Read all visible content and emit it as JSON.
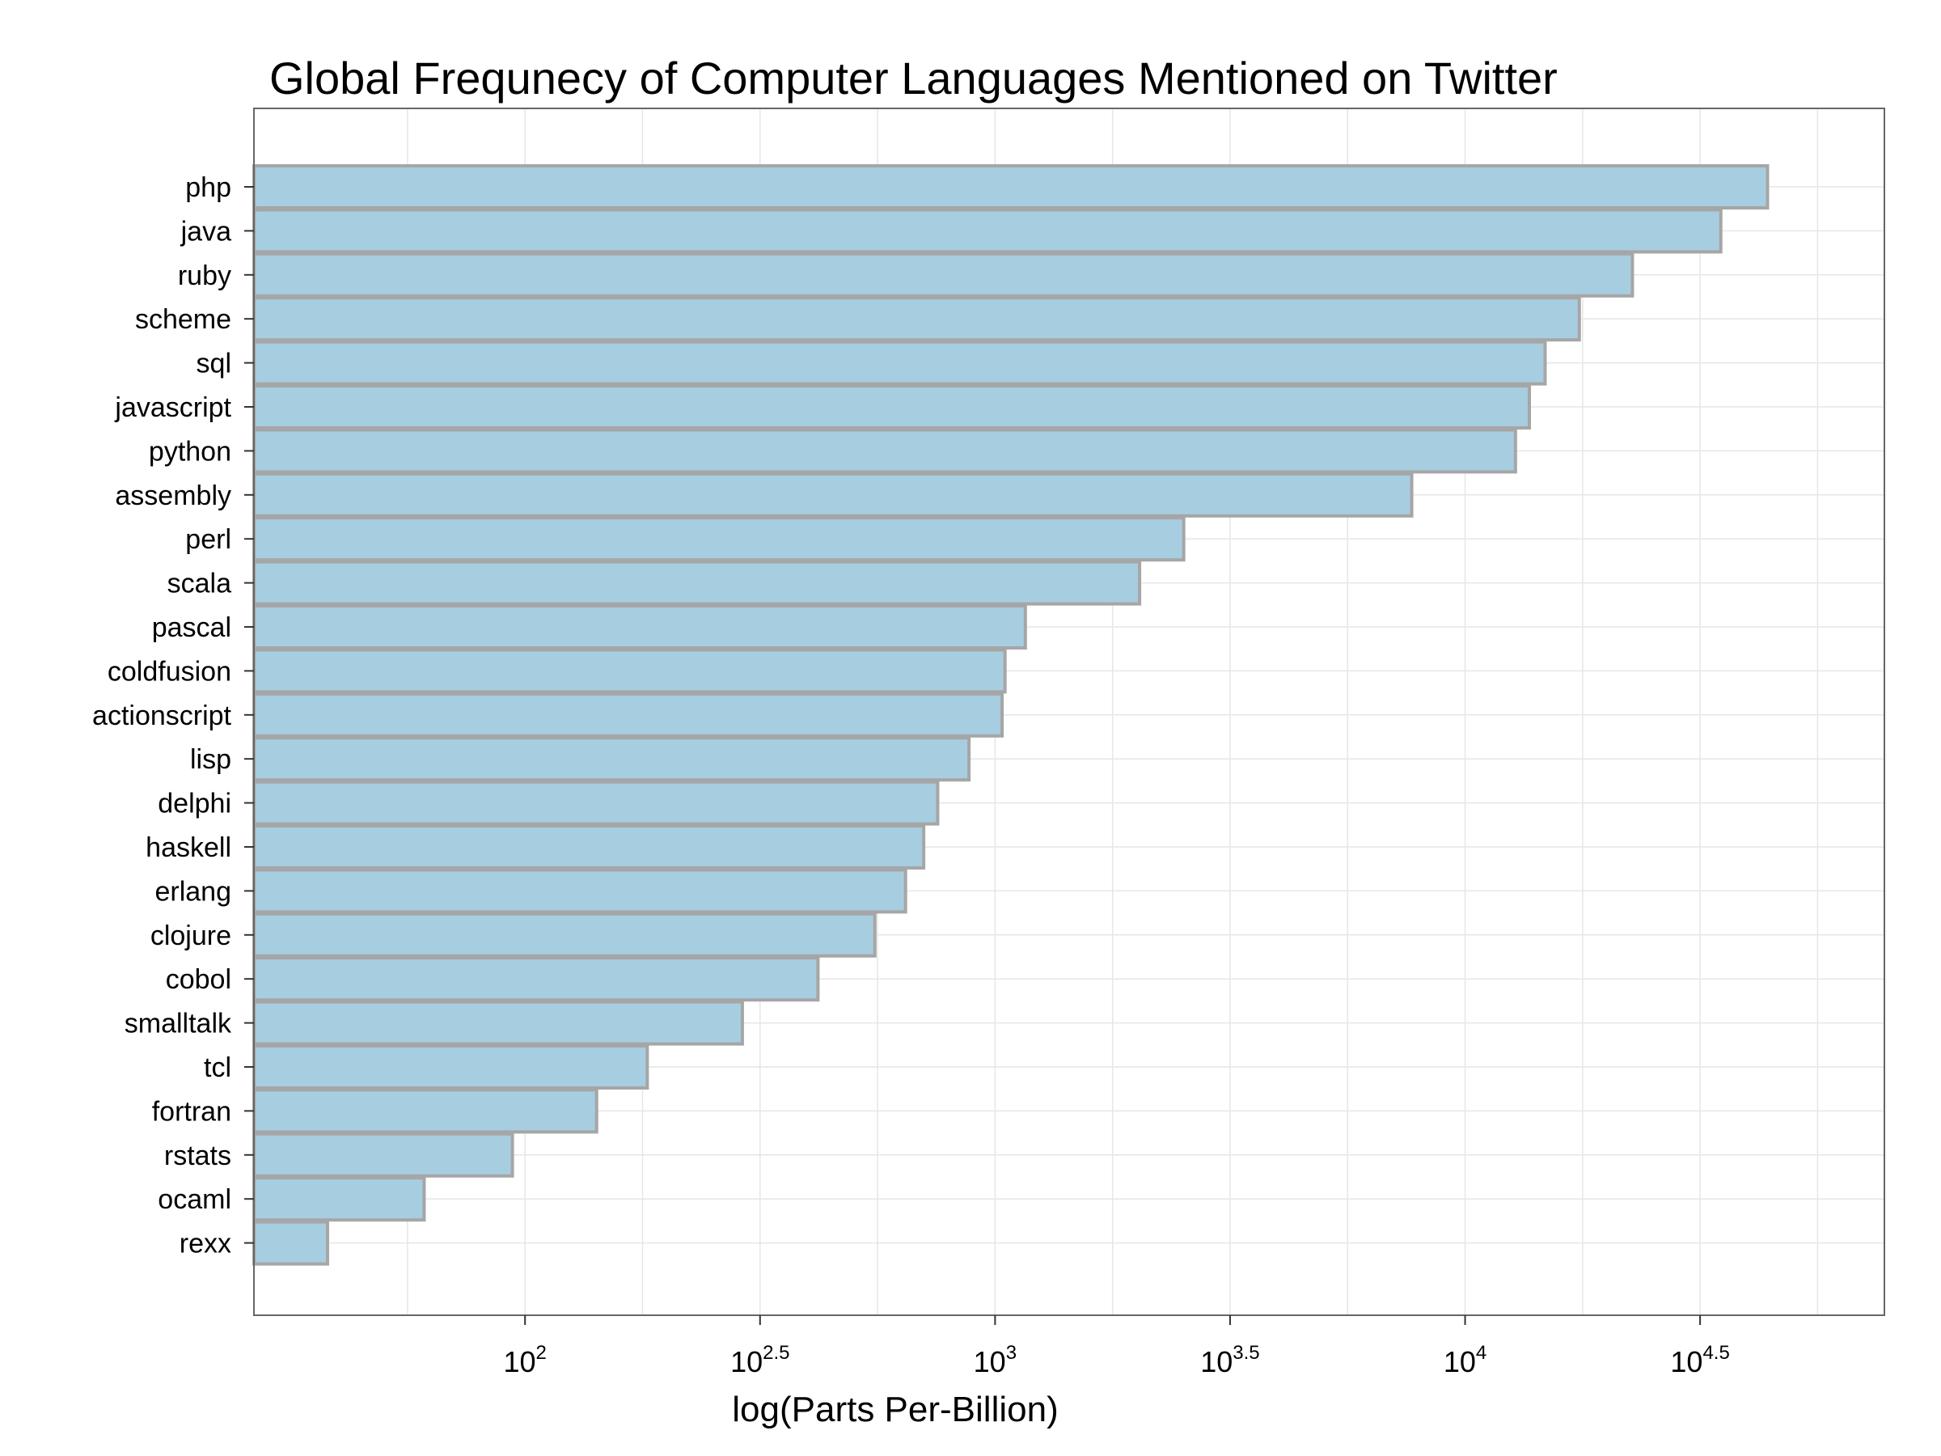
{
  "chart_data": {
    "type": "bar",
    "orientation": "horizontal",
    "title": "Global Frequnecy of Computer Languages Mentioned on Twitter",
    "xlabel": "log(Parts Per-Billion)",
    "ylabel": "",
    "x_scale": "log10",
    "categories": [
      "php",
      "java",
      "ruby",
      "scheme",
      "sql",
      "javascript",
      "python",
      "assembly",
      "perl",
      "scala",
      "pascal",
      "coldfusion",
      "actionscript",
      "lisp",
      "delphi",
      "haskell",
      "erlang",
      "clojure",
      "cobol",
      "smalltalk",
      "tcl",
      "fortran",
      "rstats",
      "ocaml",
      "rexx"
    ],
    "values": [
      44000,
      35000,
      22700,
      17500,
      14800,
      13700,
      12800,
      7700,
      2520,
      2030,
      1160,
      1050,
      1035,
      880,
      755,
      705,
      645,
      555,
      420,
      290,
      182,
      142,
      94,
      61,
      38
    ],
    "xlim": [
      26.5,
      78000
    ],
    "x_ticks": [
      {
        "value": 100,
        "base": "10",
        "exponent": "2"
      },
      {
        "value": 316.23,
        "base": "10",
        "exponent": "2.5"
      },
      {
        "value": 1000,
        "base": "10",
        "exponent": "3"
      },
      {
        "value": 3162.3,
        "base": "10",
        "exponent": "3.5"
      },
      {
        "value": 10000,
        "base": "10",
        "exponent": "4"
      },
      {
        "value": 31623,
        "base": "10",
        "exponent": "4.5"
      }
    ],
    "grid": true,
    "colors": {
      "bar_fill": "#a7cde0",
      "bar_border": "#a6a6a6",
      "panel_border": "#666666",
      "grid": "#e6e6e6"
    }
  }
}
